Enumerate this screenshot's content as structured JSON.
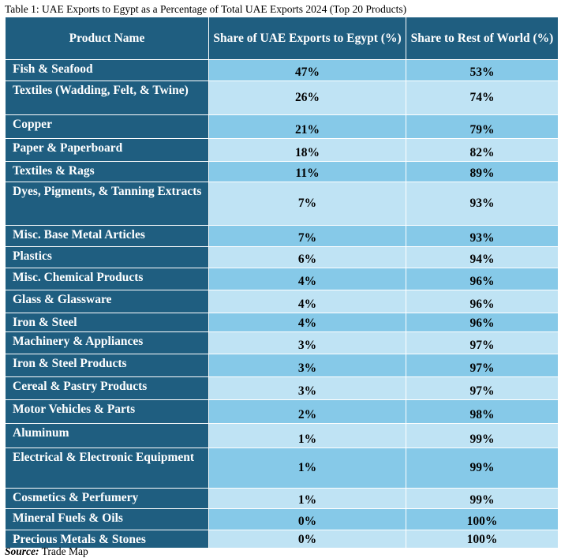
{
  "caption": "Table 1: UAE Exports to Egypt as a Percentage of Total UAE Exports 2024 (Top 20 Products)",
  "headers": {
    "product": "Product Name",
    "egypt": "Share of UAE Exports to Egypt (%)",
    "rest": "Share to Rest of World (%)"
  },
  "rows": [
    {
      "name": "Fish & Seafood",
      "egypt": "47%",
      "rest": "53%"
    },
    {
      "name": "Textiles (Wadding, Felt, & Twine)",
      "egypt": "26%",
      "rest": "74%"
    },
    {
      "name": "Copper",
      "egypt": "21%",
      "rest": "79%"
    },
    {
      "name": "Paper & Paperboard",
      "egypt": "18%",
      "rest": "82%"
    },
    {
      "name": "Textiles & Rags",
      "egypt": "11%",
      "rest": "89%"
    },
    {
      "name": "Dyes, Pigments, & Tanning Extracts",
      "egypt": "7%",
      "rest": "93%"
    },
    {
      "name": "Misc. Base Metal Articles",
      "egypt": "7%",
      "rest": "93%"
    },
    {
      "name": "Plastics",
      "egypt": "6%",
      "rest": "94%"
    },
    {
      "name": "Misc. Chemical Products",
      "egypt": "4%",
      "rest": "96%"
    },
    {
      "name": "Glass & Glassware",
      "egypt": "4%",
      "rest": "96%"
    },
    {
      "name": "Iron & Steel",
      "egypt": "4%",
      "rest": "96%"
    },
    {
      "name": "Machinery & Appliances",
      "egypt": "3%",
      "rest": "97%"
    },
    {
      "name": "Iron & Steel Products",
      "egypt": "3%",
      "rest": "97%"
    },
    {
      "name": "Cereal & Pastry Products",
      "egypt": "3%",
      "rest": "97%"
    },
    {
      "name": "Motor Vehicles & Parts",
      "egypt": "2%",
      "rest": "98%"
    },
    {
      "name": "Aluminum",
      "egypt": "1%",
      "rest": "99%"
    },
    {
      "name": "Electrical & Electronic Equipment",
      "egypt": "1%",
      "rest": "99%"
    },
    {
      "name": "Cosmetics & Perfumery",
      "egypt": "1%",
      "rest": "99%"
    },
    {
      "name": "Mineral Fuels & Oils",
      "egypt": "0%",
      "rest": "100%"
    },
    {
      "name": "Precious Metals & Stones",
      "egypt": "0%",
      "rest": "100%"
    }
  ],
  "source": {
    "label": "Source:",
    "text": " Trade Map"
  }
}
